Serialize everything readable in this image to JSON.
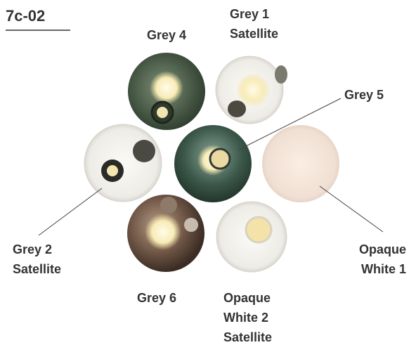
{
  "header": {
    "title": "7c-02"
  },
  "labels": [
    {
      "lines": [
        "Grey 4"
      ]
    },
    {
      "lines": [
        "Grey 1",
        "Satellite"
      ]
    },
    {
      "lines": [
        "Grey 5"
      ]
    },
    {
      "lines": [
        "Grey 2",
        "Satellite"
      ]
    },
    {
      "lines": [
        "Opaque",
        "White 1"
      ]
    },
    {
      "lines": [
        "Grey 6"
      ]
    },
    {
      "lines": [
        "Opaque",
        "White 2",
        "Satellite"
      ]
    }
  ]
}
